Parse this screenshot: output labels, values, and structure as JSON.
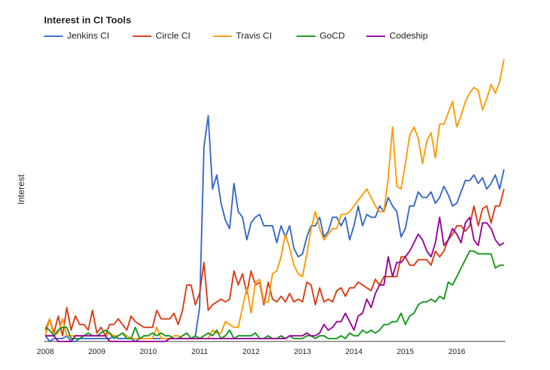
{
  "chart_data": {
    "type": "line",
    "title": "Interest in CI Tools",
    "y_label": "Interest",
    "categories": [
      "2008",
      null,
      null,
      null,
      null,
      null,
      null,
      null,
      null,
      null,
      null,
      null,
      "2009",
      null,
      null,
      null,
      null,
      null,
      null,
      null,
      null,
      null,
      null,
      null,
      "2010",
      null,
      null,
      null,
      null,
      null,
      null,
      null,
      null,
      null,
      null,
      null,
      "2011",
      null,
      null,
      null,
      null,
      null,
      null,
      null,
      null,
      null,
      null,
      null,
      "2012",
      null,
      null,
      null,
      null,
      null,
      null,
      null,
      null,
      null,
      null,
      null,
      "2013",
      null,
      null,
      null,
      null,
      null,
      null,
      null,
      null,
      null,
      null,
      null,
      "2014",
      null,
      null,
      null,
      null,
      null,
      null,
      null,
      null,
      null,
      null,
      null,
      "2015",
      null,
      null,
      null,
      null,
      null,
      null,
      null,
      null,
      null,
      null,
      null,
      "2016",
      null,
      null,
      null,
      null,
      null,
      null,
      null,
      null,
      null,
      null,
      null
    ],
    "ylim": [
      0,
      100
    ],
    "series": [
      {
        "name": "Jenkins CI",
        "color": "#3366cc",
        "values": [
          2,
          0,
          1,
          1,
          1,
          2,
          0,
          0,
          1,
          1,
          1,
          1,
          1,
          1,
          1,
          1,
          2,
          1,
          1,
          1,
          1,
          0,
          1,
          1,
          1,
          1,
          1,
          1,
          1,
          1,
          1,
          1,
          1,
          1,
          1,
          2,
          12,
          69,
          80,
          54,
          59,
          49,
          43,
          40,
          56,
          46,
          44,
          36,
          42,
          44,
          45,
          41,
          41,
          41,
          35,
          41,
          37,
          41,
          33,
          30,
          31,
          37,
          41,
          41,
          44,
          37,
          39,
          44,
          44,
          41,
          44,
          36,
          41,
          48,
          41,
          45,
          44,
          44,
          48,
          46,
          51,
          48,
          46,
          37,
          40,
          48,
          48,
          53,
          51,
          51,
          53,
          49,
          51,
          55,
          52,
          48,
          49,
          53,
          57,
          57,
          59,
          56,
          58,
          54,
          56,
          59,
          54,
          61
        ]
      },
      {
        "name": "Circle CI",
        "color": "#dc3912",
        "values": [
          4,
          8,
          3,
          9,
          2,
          12,
          4,
          9,
          6,
          6,
          4,
          11,
          3,
          5,
          2,
          6,
          6,
          8,
          6,
          4,
          9,
          7,
          6,
          5,
          5,
          5,
          11,
          8,
          8,
          8,
          10,
          6,
          11,
          20,
          20,
          13,
          17,
          28,
          11,
          13,
          14,
          15,
          14,
          15,
          25,
          20,
          24,
          17,
          25,
          20,
          21,
          13,
          21,
          15,
          14,
          16,
          14,
          17,
          14,
          15,
          14,
          21,
          20,
          13,
          19,
          14,
          15,
          14,
          18,
          19,
          16,
          19,
          19,
          21,
          20,
          19,
          18,
          22,
          20,
          23,
          23,
          23,
          23,
          30,
          30,
          27,
          27,
          29,
          29,
          29,
          27,
          32,
          30,
          32,
          36,
          38,
          41,
          41,
          39,
          41,
          48,
          41,
          47,
          48,
          42,
          48,
          48,
          54
        ]
      },
      {
        "name": "Travis CI",
        "color": "#ff9900",
        "values": [
          2,
          8,
          2,
          3,
          8,
          2,
          2,
          2,
          2,
          2,
          2,
          2,
          2,
          2,
          2,
          3,
          2,
          2,
          3,
          2,
          1,
          1,
          1,
          1,
          1,
          1,
          5,
          1,
          1,
          1,
          2,
          2,
          1,
          1,
          1,
          1,
          1,
          1,
          1,
          4,
          3,
          3,
          7,
          6,
          5,
          5,
          12,
          19,
          10,
          21,
          22,
          14,
          14,
          24,
          25,
          30,
          38,
          33,
          27,
          24,
          23,
          31,
          40,
          46,
          40,
          36,
          38,
          40,
          40,
          45,
          45,
          46,
          48,
          50,
          52,
          54,
          51,
          48,
          46,
          46,
          58,
          76,
          55,
          54,
          63,
          73,
          76,
          72,
          63,
          71,
          74,
          65,
          77,
          77,
          81,
          85,
          76,
          80,
          85,
          88,
          90,
          89,
          82,
          86,
          91,
          88,
          92,
          100
        ]
      },
      {
        "name": "GoCD",
        "color": "#109618",
        "values": [
          5,
          4,
          2,
          4,
          5,
          5,
          1,
          1,
          1,
          2,
          3,
          2,
          2,
          3,
          4,
          3,
          1,
          2,
          3,
          1,
          1,
          5,
          1,
          2,
          2,
          3,
          2,
          3,
          2,
          2,
          1,
          1,
          2,
          3,
          1,
          2,
          1,
          2,
          3,
          2,
          4,
          1,
          2,
          4,
          1,
          2,
          2,
          2,
          2,
          3,
          1,
          1,
          2,
          1,
          1,
          2,
          1,
          2,
          1,
          1,
          1,
          2,
          2,
          1,
          2,
          2,
          1,
          1,
          1,
          2,
          1,
          3,
          2,
          2,
          4,
          3,
          4,
          3,
          4,
          6,
          6,
          7,
          7,
          10,
          6,
          9,
          10,
          13,
          14,
          14,
          15,
          14,
          16,
          15,
          21,
          20,
          23,
          26,
          29,
          32,
          32,
          31,
          31,
          31,
          31,
          26,
          27,
          27
        ]
      },
      {
        "name": "Codeship",
        "color": "#990099",
        "values": [
          2,
          2,
          2,
          0,
          0,
          0,
          0,
          2,
          2,
          2,
          2,
          2,
          2,
          2,
          2,
          0,
          0,
          0,
          0,
          0,
          0,
          0,
          0,
          0,
          0,
          0,
          0,
          0,
          0,
          1,
          1,
          1,
          1,
          1,
          1,
          1,
          1,
          1,
          1,
          1,
          1,
          1,
          1,
          1,
          1,
          1,
          1,
          1,
          1,
          1,
          1,
          1,
          1,
          1,
          1,
          1,
          1,
          2,
          2,
          2,
          2,
          3,
          2,
          2,
          3,
          6,
          4,
          5,
          7,
          7,
          10,
          7,
          4,
          9,
          10,
          15,
          12,
          17,
          20,
          20,
          30,
          23,
          28,
          28,
          30,
          32,
          35,
          38,
          36,
          32,
          30,
          35,
          44,
          34,
          36,
          40,
          38,
          35,
          42,
          44,
          36,
          34,
          42,
          42,
          40,
          36,
          34,
          35
        ]
      }
    ]
  }
}
